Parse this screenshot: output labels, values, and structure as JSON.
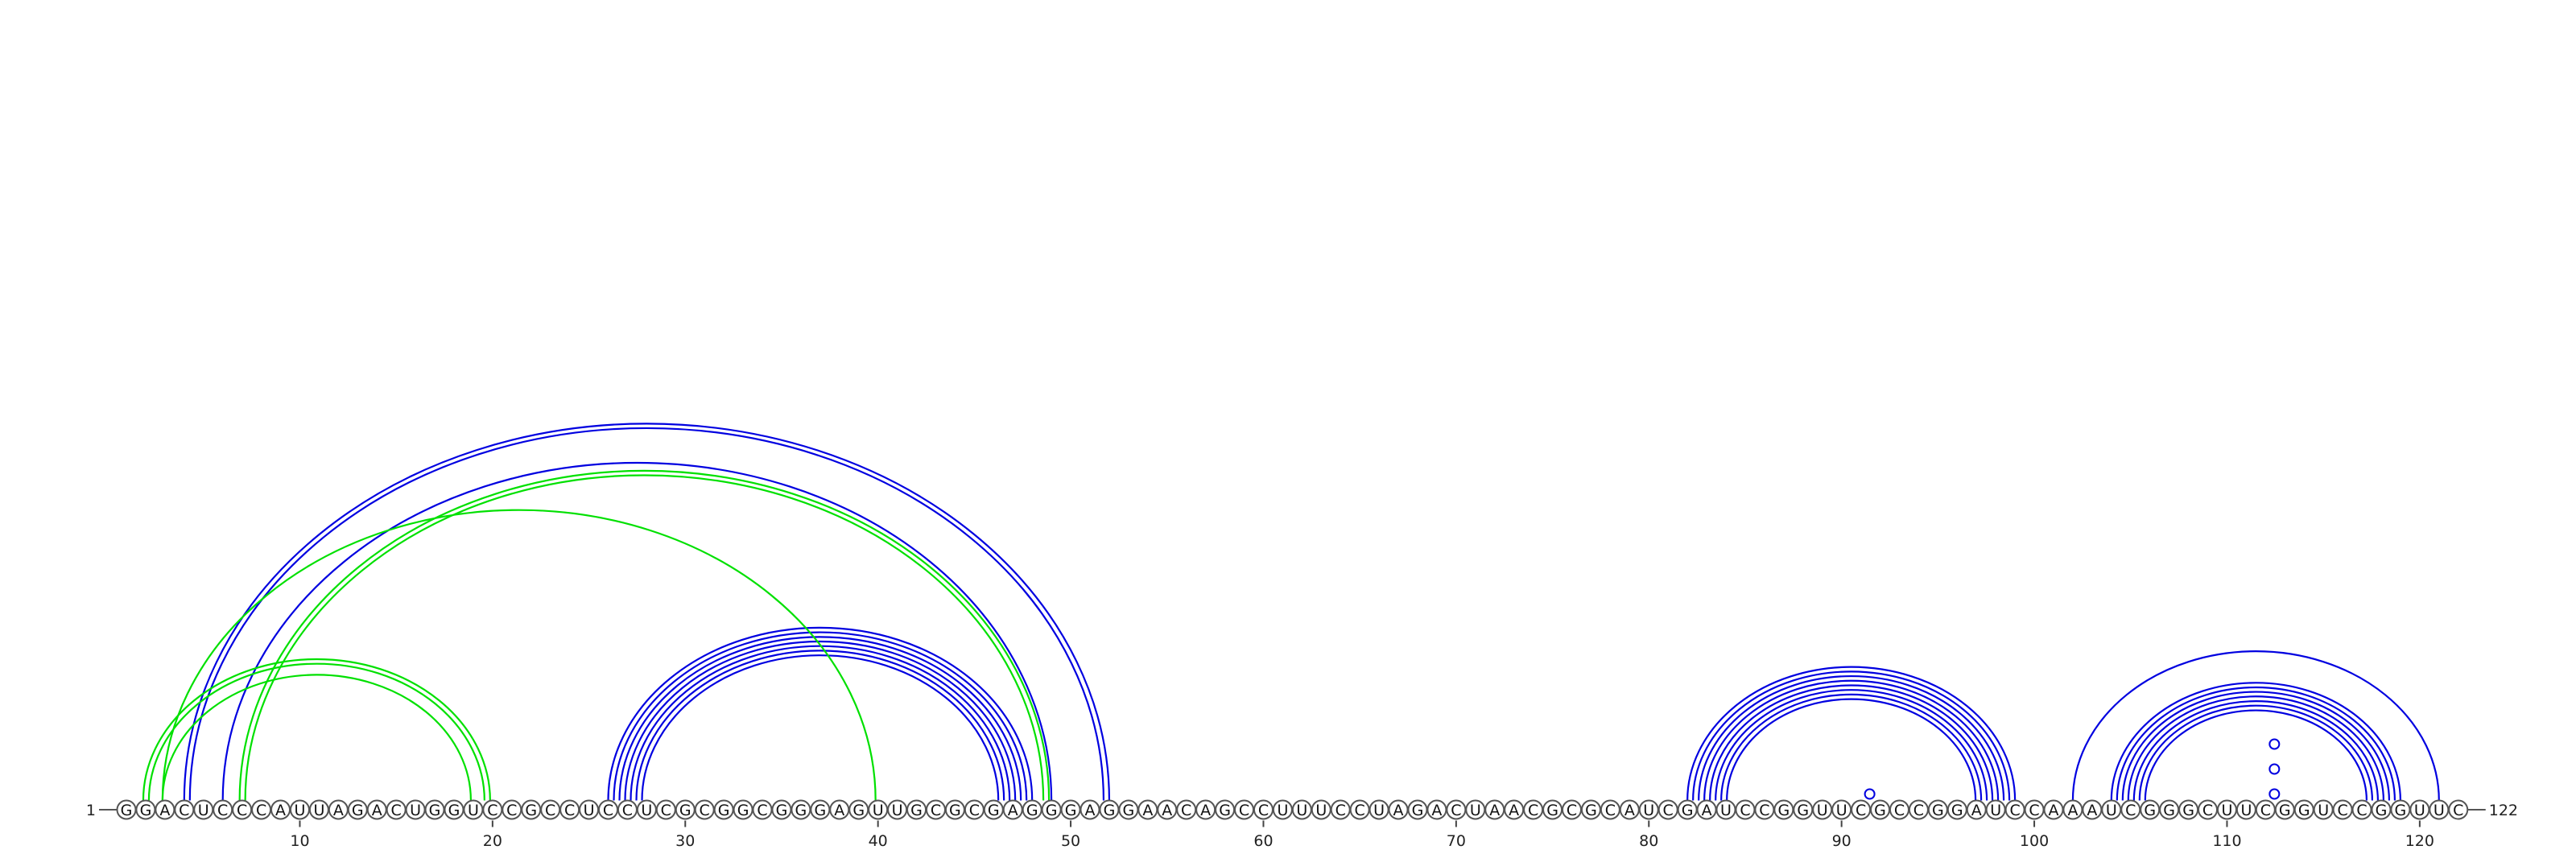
{
  "sequence": "GGACUCCCAUUAGACUGGUCCGCCUCCUCGCGGCGGGAGUUGCGCGAGGGAGGAACAGCCUUUCCUAGACUAACGCGCAUCGAUCCGGUUCGCCGGAUCCAAAUCGGGCUUCGGUCCGGUUC",
  "start_label": "1",
  "end_label": "122",
  "tick_positions": [
    10,
    20,
    30,
    40,
    50,
    60,
    70,
    80,
    90,
    100,
    110,
    120
  ],
  "tick_labels": [
    "10",
    "20",
    "30",
    "40",
    "50",
    "60",
    "70",
    "80",
    "90",
    "100",
    "110",
    "120"
  ],
  "colors": {
    "structure_a": "#0000e0",
    "structure_b": "#00e000"
  },
  "pair_groups": [
    {
      "color": "structure_a",
      "start": 4,
      "end": 52,
      "count": 2
    },
    {
      "color": "structure_a",
      "start": 6,
      "end": 49,
      "count": 1
    },
    {
      "color": "structure_a",
      "start": 26,
      "end": 48,
      "count": 7
    },
    {
      "color": "structure_a",
      "start": 82,
      "end": 99,
      "count": 8
    },
    {
      "color": "structure_a",
      "start": 102,
      "end": 121,
      "count": 1
    },
    {
      "color": "structure_a",
      "start": 104,
      "end": 119,
      "count": 7
    },
    {
      "color": "structure_b",
      "start": 2,
      "end": 20,
      "count": 2
    },
    {
      "color": "structure_b",
      "start": 3,
      "end": 19,
      "count": 1
    },
    {
      "color": "structure_b",
      "start": 3,
      "end": 40,
      "count": 1
    },
    {
      "color": "structure_b",
      "start": 7,
      "end": 49,
      "count": 2
    }
  ],
  "unpaired_markers": [
    {
      "color": "structure_a",
      "position": 91
    },
    {
      "color": "structure_a",
      "position": 112
    },
    {
      "color": "structure_a",
      "position": 112
    },
    {
      "color": "structure_a",
      "position": 112
    }
  ]
}
